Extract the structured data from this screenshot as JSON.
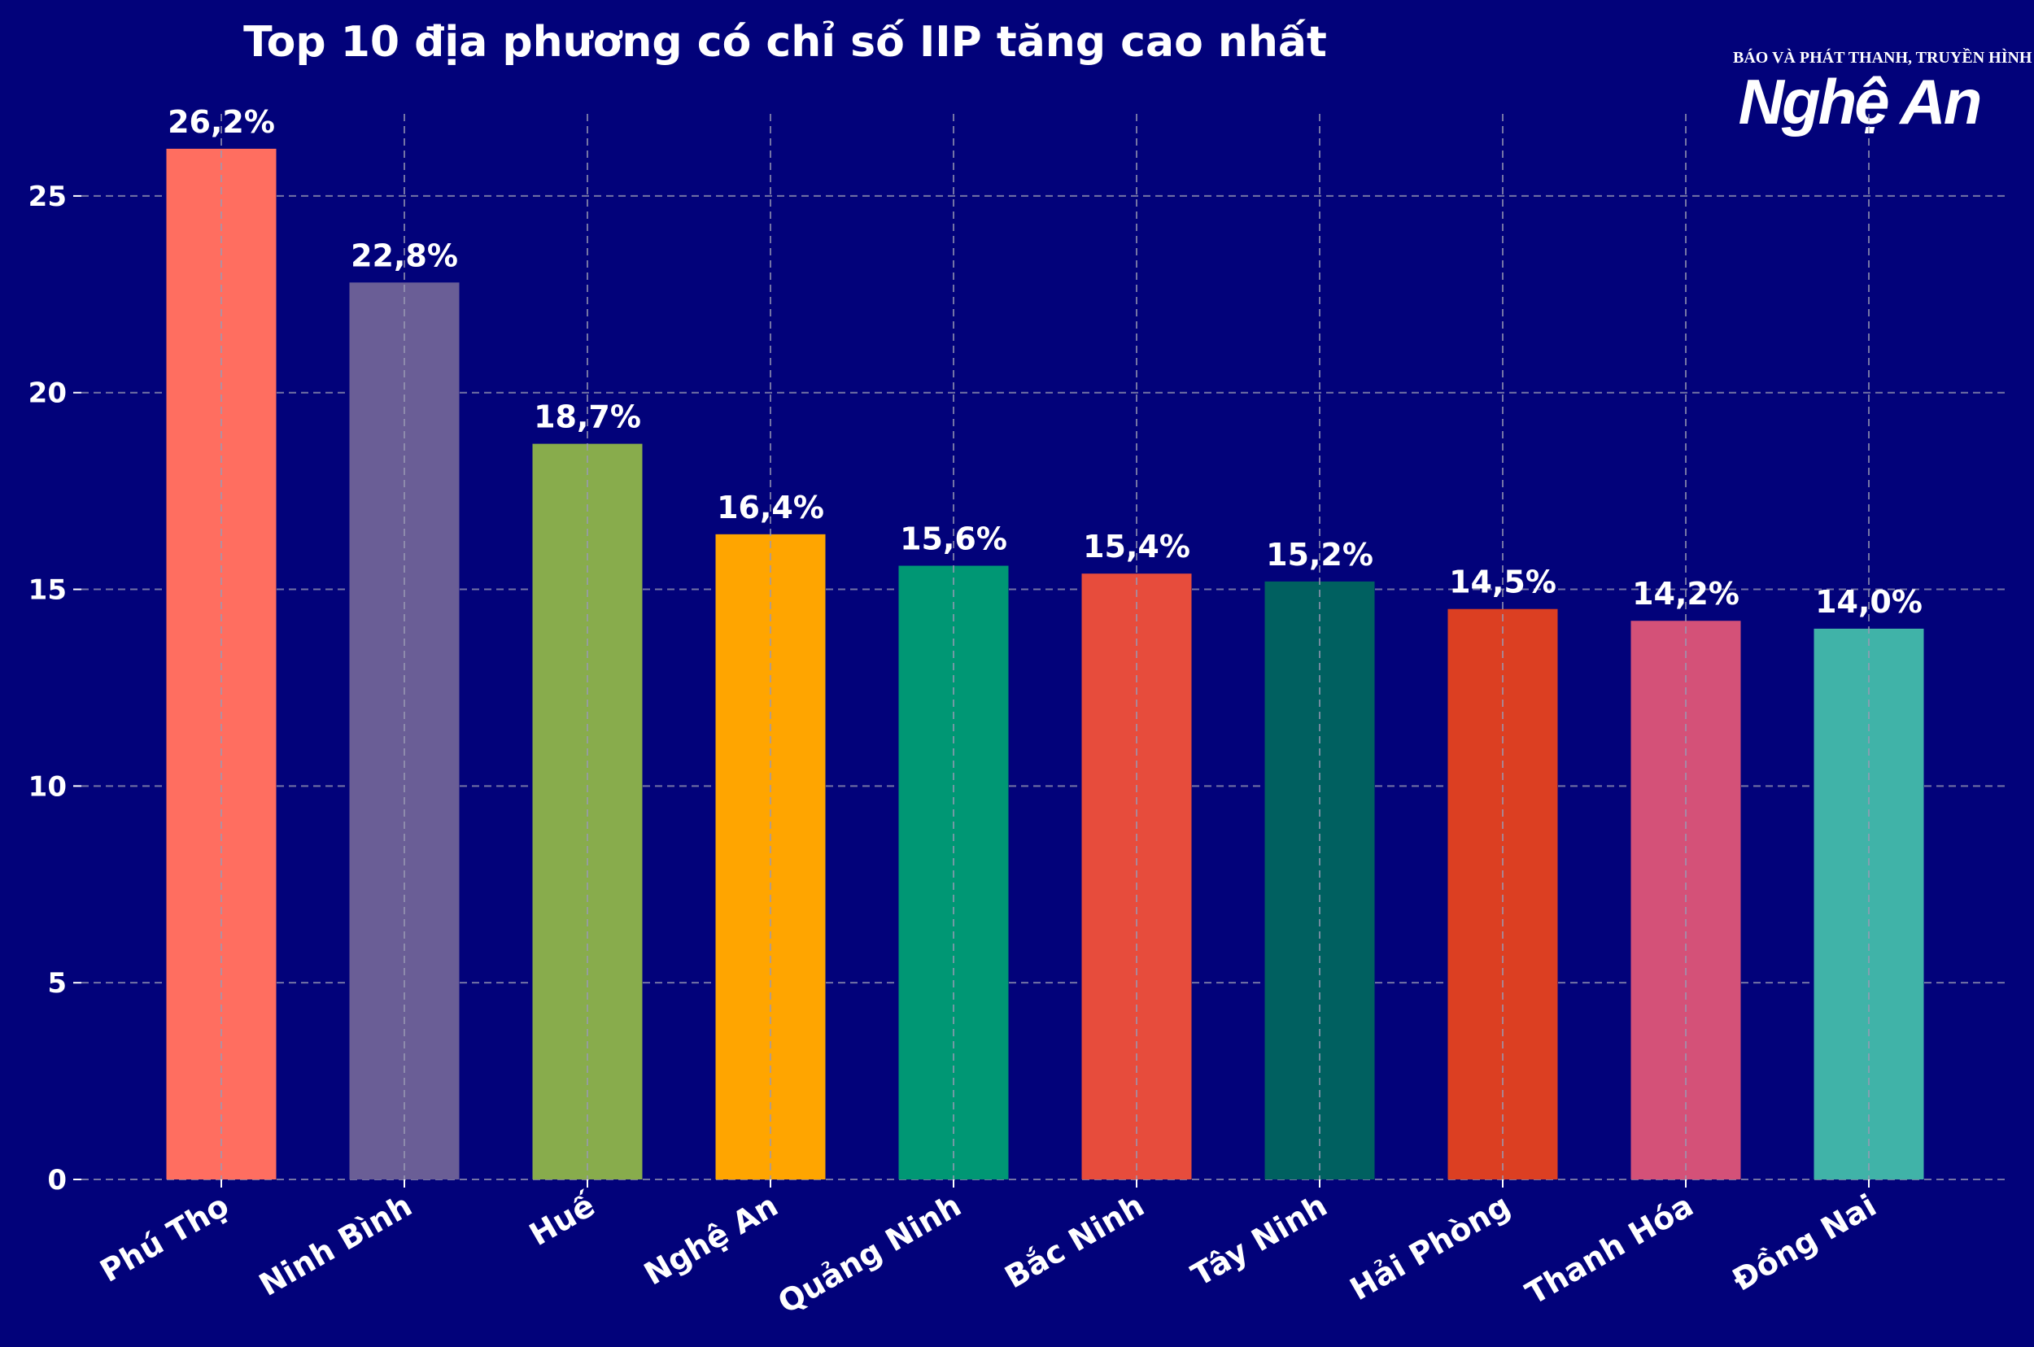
{
  "chart_data": {
    "type": "bar",
    "title": "Top 10 địa phương có chỉ số IIP tăng cao nhất",
    "xlabel": "",
    "ylabel": "",
    "categories": [
      "Phú Thọ",
      "Ninh Bình",
      "Huế",
      "Nghệ An",
      "Quảng Ninh",
      "Bắc Ninh",
      "Tây Ninh",
      "Hải Phòng",
      "Thanh Hóa",
      "Đồng Nai"
    ],
    "values": [
      26.2,
      22.8,
      18.7,
      16.4,
      15.6,
      15.4,
      15.2,
      14.5,
      14.2,
      14.0
    ],
    "value_labels": [
      "26,2%",
      "22,8%",
      "18,7%",
      "16,4%",
      "15,6%",
      "15,4%",
      "15,2%",
      "14,5%",
      "14,2%",
      "14,0%"
    ],
    "bar_colors": [
      "#ff6e60",
      "#6a5e96",
      "#88ac4c",
      "#ffa500",
      "#009774",
      "#e74c3c",
      "#006060",
      "#dc3f22",
      "#d45178",
      "#40b3a8"
    ],
    "ylim": [
      0,
      27.5
    ],
    "yticks": [
      0,
      5,
      10,
      15,
      20,
      25
    ],
    "grid": true,
    "legend": "none"
  },
  "logo": {
    "top_text": "BÁO VÀ PHÁT THANH, TRUYỀN HÌNH",
    "name": "Nghệ An"
  },
  "colors": {
    "background": "#02027a",
    "text": "#ffffff",
    "grid": "#9a9ab4"
  }
}
